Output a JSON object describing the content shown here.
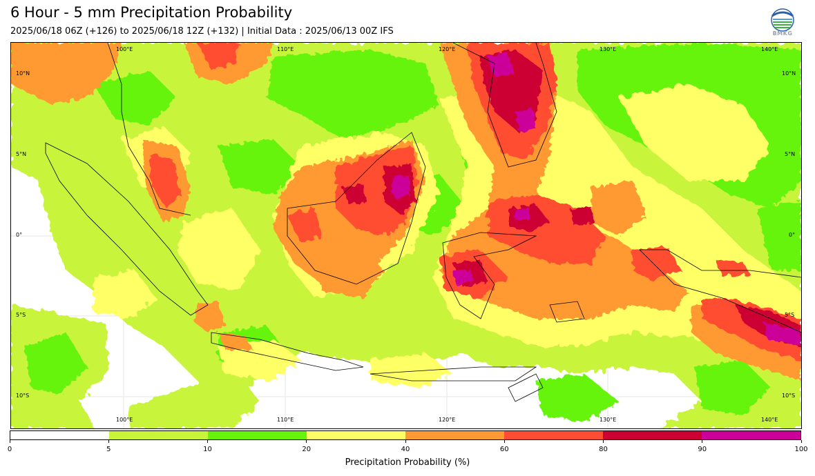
{
  "header": {
    "title": "6 Hour - 5 mm Precipitation Probability",
    "subtitle": "2025/06/18 06Z (+126) to 2025/06/18 12Z (+132) | Initial Data : 2025/06/13 00Z IFS",
    "logo_text": "BMKG"
  },
  "map": {
    "lon_labels": [
      "100°E",
      "110°E",
      "120°E",
      "130°E",
      "140°E"
    ],
    "lat_labels": [
      "10°N",
      "5°N",
      "0°",
      "5°S",
      "10°S"
    ],
    "lon_range": [
      93,
      142
    ],
    "lat_range": [
      -12,
      12
    ],
    "region": "Indonesia / Maritime Continent"
  },
  "colorbar": {
    "label": "Precipitation Probability (%)",
    "ticks": [
      "0",
      "5",
      "10",
      "20",
      "40",
      "60",
      "80",
      "90",
      "100"
    ],
    "colors": [
      "#ffffff",
      "#c8f53a",
      "#66f40a",
      "#ffff66",
      "#ff9a33",
      "#ff4d33",
      "#cc0033",
      "#cc0099"
    ]
  }
}
